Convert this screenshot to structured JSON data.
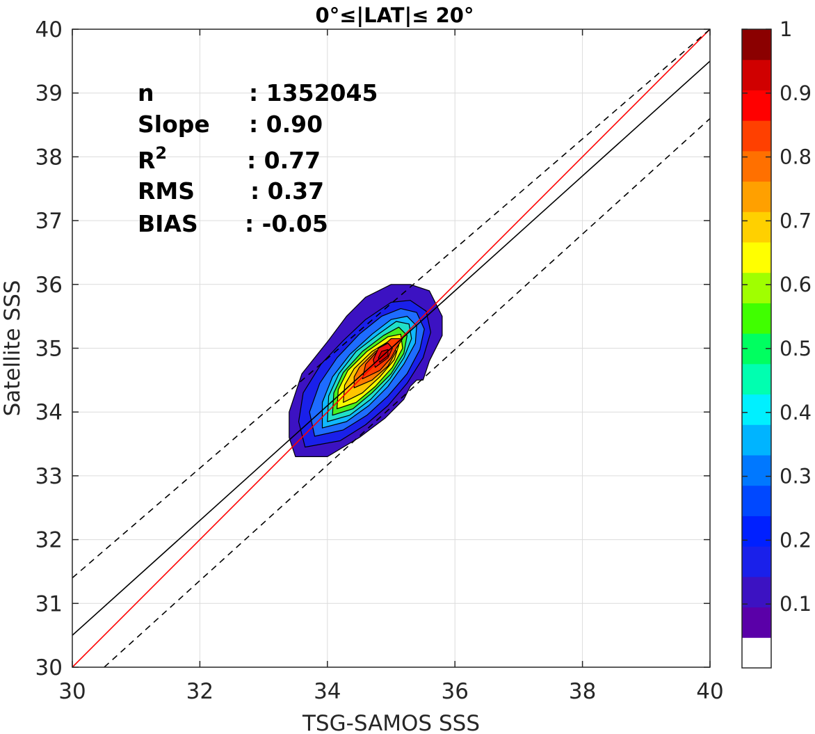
{
  "chart_data": {
    "type": "contour",
    "title_parts": [
      "0°",
      "≤",
      "|LAT|",
      "≤",
      " 20°"
    ],
    "xlabel": "TSG-SAMOS SSS",
    "ylabel": "Satellite SSS",
    "xlim": [
      30,
      40
    ],
    "ylim": [
      30,
      40
    ],
    "xticks": [
      "30",
      "32",
      "34",
      "36",
      "38",
      "40"
    ],
    "yticks": [
      "30",
      "31",
      "32",
      "33",
      "34",
      "35",
      "36",
      "37",
      "38",
      "39",
      "40"
    ],
    "grid": true,
    "stats": [
      {
        "label": "n",
        "value": ": 1352045"
      },
      {
        "label": "Slope",
        "value": ": 0.90"
      },
      {
        "label": "R",
        "sup": "2",
        "value": ": 0.77"
      },
      {
        "label": "RMS",
        "value": ": 0.37"
      },
      {
        "label": "BIAS",
        "value": ": -0.05"
      }
    ],
    "lines": [
      {
        "name": "1:1 line",
        "color": "#ff0000",
        "style": "solid",
        "points": [
          [
            30,
            30
          ],
          [
            40,
            40
          ]
        ]
      },
      {
        "name": "fit",
        "color": "#000000",
        "style": "solid",
        "points": [
          [
            30,
            30.5
          ],
          [
            40,
            39.5
          ]
        ]
      },
      {
        "name": "upper bound",
        "color": "#000000",
        "style": "dashed",
        "points": [
          [
            30,
            31.4
          ],
          [
            40,
            40
          ]
        ]
      },
      {
        "name": "lower bound",
        "color": "#000000",
        "style": "dashed",
        "points": [
          [
            30.5,
            30
          ],
          [
            40,
            38.6
          ]
        ]
      }
    ],
    "contour_levels": [
      {
        "level": 0.05,
        "color": "#3c12c2",
        "polygon": [
          [
            33.5,
            33.3
          ],
          [
            33.6,
            33.3
          ],
          [
            34.0,
            33.3
          ],
          [
            34.5,
            33.6
          ],
          [
            34.9,
            33.9
          ],
          [
            35.2,
            34.2
          ],
          [
            35.3,
            34.4
          ],
          [
            35.4,
            34.5
          ],
          [
            35.5,
            34.5
          ],
          [
            35.6,
            34.8
          ],
          [
            35.8,
            35.2
          ],
          [
            35.8,
            35.5
          ],
          [
            35.6,
            35.9
          ],
          [
            35.3,
            36.0
          ],
          [
            35.0,
            36.0
          ],
          [
            34.6,
            35.8
          ],
          [
            34.3,
            35.5
          ],
          [
            34.0,
            35.1
          ],
          [
            33.6,
            34.6
          ],
          [
            33.4,
            34.0
          ],
          [
            33.4,
            33.6
          ]
        ]
      },
      {
        "level": 0.1,
        "color": "#1a20ea",
        "polygon": [
          [
            33.65,
            33.45
          ],
          [
            34.2,
            33.55
          ],
          [
            34.6,
            33.8
          ],
          [
            34.95,
            34.1
          ],
          [
            35.25,
            34.45
          ],
          [
            35.5,
            34.85
          ],
          [
            35.62,
            35.25
          ],
          [
            35.55,
            35.58
          ],
          [
            35.3,
            35.75
          ],
          [
            35.0,
            35.72
          ],
          [
            34.6,
            35.45
          ],
          [
            34.25,
            35.12
          ],
          [
            33.9,
            34.75
          ],
          [
            33.62,
            34.3
          ],
          [
            33.55,
            33.85
          ]
        ]
      },
      {
        "level": 0.2,
        "color": "#1e6cff",
        "polygon": [
          [
            33.8,
            33.62
          ],
          [
            34.25,
            33.72
          ],
          [
            34.62,
            33.95
          ],
          [
            34.95,
            34.25
          ],
          [
            35.25,
            34.6
          ],
          [
            35.45,
            34.98
          ],
          [
            35.52,
            35.3
          ],
          [
            35.4,
            35.56
          ],
          [
            35.15,
            35.62
          ],
          [
            34.85,
            35.5
          ],
          [
            34.5,
            35.22
          ],
          [
            34.15,
            34.85
          ],
          [
            33.88,
            34.45
          ],
          [
            33.72,
            34.0
          ]
        ]
      },
      {
        "level": 0.3,
        "color": "#10b8ff",
        "polygon": [
          [
            33.92,
            33.75
          ],
          [
            34.3,
            33.85
          ],
          [
            34.65,
            34.1
          ],
          [
            34.95,
            34.4
          ],
          [
            35.2,
            34.75
          ],
          [
            35.38,
            35.08
          ],
          [
            35.4,
            35.35
          ],
          [
            35.25,
            35.5
          ],
          [
            35.0,
            35.45
          ],
          [
            34.7,
            35.22
          ],
          [
            34.35,
            34.9
          ],
          [
            34.08,
            34.55
          ],
          [
            33.92,
            34.15
          ]
        ]
      },
      {
        "level": 0.4,
        "color": "#20e0c8",
        "polygon": [
          [
            34.0,
            33.85
          ],
          [
            34.35,
            33.95
          ],
          [
            34.68,
            34.2
          ],
          [
            34.98,
            34.52
          ],
          [
            35.2,
            34.85
          ],
          [
            35.32,
            35.15
          ],
          [
            35.28,
            35.38
          ],
          [
            35.08,
            35.42
          ],
          [
            34.8,
            35.22
          ],
          [
            34.45,
            34.95
          ],
          [
            34.18,
            34.6
          ],
          [
            34.02,
            34.25
          ]
        ]
      },
      {
        "level": 0.5,
        "color": "#48f020",
        "polygon": [
          [
            34.08,
            33.95
          ],
          [
            34.4,
            34.05
          ],
          [
            34.7,
            34.3
          ],
          [
            35.0,
            34.6
          ],
          [
            35.2,
            34.92
          ],
          [
            35.25,
            35.2
          ],
          [
            35.12,
            35.33
          ],
          [
            34.88,
            35.2
          ],
          [
            34.55,
            34.95
          ],
          [
            34.25,
            34.62
          ],
          [
            34.1,
            34.3
          ]
        ]
      },
      {
        "level": 0.6,
        "color": "#f4f800",
        "polygon": [
          [
            34.15,
            34.05
          ],
          [
            34.45,
            34.15
          ],
          [
            34.75,
            34.4
          ],
          [
            35.02,
            34.7
          ],
          [
            35.18,
            35.0
          ],
          [
            35.15,
            35.22
          ],
          [
            34.95,
            35.18
          ],
          [
            34.62,
            34.95
          ],
          [
            34.32,
            34.65
          ],
          [
            34.17,
            34.35
          ]
        ]
      },
      {
        "level": 0.7,
        "color": "#ffc600",
        "polygon": [
          [
            34.25,
            34.15
          ],
          [
            34.55,
            34.3
          ],
          [
            34.82,
            34.55
          ],
          [
            35.05,
            34.82
          ],
          [
            35.12,
            35.05
          ],
          [
            34.98,
            35.12
          ],
          [
            34.7,
            34.95
          ],
          [
            34.42,
            34.68
          ],
          [
            34.27,
            34.42
          ]
        ]
      },
      {
        "level": 0.8,
        "color": "#ff7a00",
        "polygon": [
          [
            34.42,
            34.38
          ],
          [
            34.7,
            34.5
          ],
          [
            34.95,
            34.72
          ],
          [
            35.08,
            34.95
          ],
          [
            35.0,
            35.08
          ],
          [
            34.75,
            34.95
          ],
          [
            34.5,
            34.7
          ],
          [
            34.42,
            34.55
          ]
        ]
      },
      {
        "level": 0.85,
        "color": "#ff3e00",
        "polygon": [
          [
            34.55,
            34.52
          ],
          [
            34.82,
            34.65
          ],
          [
            35.0,
            34.85
          ],
          [
            35.08,
            35.0
          ],
          [
            35.18,
            35.15
          ],
          [
            35.0,
            35.15
          ],
          [
            34.78,
            34.95
          ],
          [
            34.6,
            34.75
          ]
        ]
      },
      {
        "level": 0.9,
        "color": "#ee1010",
        "polygon": [
          [
            34.75,
            34.7
          ],
          [
            34.95,
            34.85
          ],
          [
            35.02,
            35.0
          ],
          [
            34.95,
            35.08
          ],
          [
            34.8,
            35.0
          ],
          [
            34.72,
            34.82
          ]
        ]
      },
      {
        "level": 0.95,
        "color": "#cc0000",
        "polygon": [
          [
            34.82,
            34.78
          ],
          [
            34.95,
            34.88
          ],
          [
            34.95,
            34.98
          ],
          [
            34.85,
            34.95
          ],
          [
            34.8,
            34.85
          ]
        ]
      }
    ],
    "colorbar": {
      "ticks": [
        "0.1",
        "0.2",
        "0.3",
        "0.4",
        "0.5",
        "0.6",
        "0.7",
        "0.8",
        "0.9",
        "1"
      ],
      "tick_values": [
        0.1,
        0.2,
        0.3,
        0.4,
        0.5,
        0.6,
        0.7,
        0.8,
        0.9,
        1.0
      ],
      "colors": [
        "#ffffff",
        "#5a00a8",
        "#3c12c2",
        "#1a20ea",
        "#0020ff",
        "#0048ff",
        "#0078ff",
        "#00b4ff",
        "#00f0ff",
        "#00ffb0",
        "#00ff60",
        "#40ff00",
        "#a0ff00",
        "#ffff00",
        "#ffd000",
        "#ffa000",
        "#ff7000",
        "#ff4000",
        "#ff0000",
        "#d00000",
        "#8b0000"
      ]
    }
  }
}
